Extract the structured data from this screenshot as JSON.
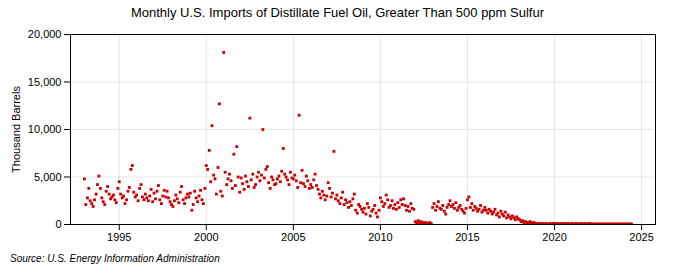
{
  "chart_data": {
    "type": "scatter",
    "title": "Monthly U.S. Imports of Distillate Fuel Oil, Greater Than 500 ppm Sulfur",
    "ylabel": "Thousand Barrels",
    "source": "Source: U.S. Energy Information Administration",
    "color": "#CC0000",
    "marker": "square",
    "grid": true,
    "xlim": [
      1992.2,
      2025.8
    ],
    "xticks": [
      1995,
      2000,
      2005,
      2010,
      2015,
      2020,
      2025
    ],
    "ylim": [
      0,
      20000
    ],
    "yticks": [
      0,
      {
        "value": 5000,
        "label": "5,000"
      },
      {
        "value": 10000,
        "label": "10,000"
      },
      {
        "value": 15000,
        "label": "15,000"
      },
      {
        "value": 20000,
        "label": "20,000"
      }
    ],
    "x": [
      1993,
      1993.08,
      1993.17,
      1993.25,
      1993.33,
      1993.42,
      1993.5,
      1993.58,
      1993.67,
      1993.75,
      1993.83,
      1993.92,
      1994,
      1994.08,
      1994.17,
      1994.25,
      1994.33,
      1994.42,
      1994.5,
      1994.58,
      1994.67,
      1994.75,
      1994.83,
      1994.92,
      1995,
      1995.08,
      1995.17,
      1995.25,
      1995.33,
      1995.42,
      1995.5,
      1995.58,
      1995.67,
      1995.75,
      1995.83,
      1995.92,
      1996,
      1996.08,
      1996.17,
      1996.25,
      1996.33,
      1996.42,
      1996.5,
      1996.58,
      1996.67,
      1996.75,
      1996.83,
      1996.92,
      1997,
      1997.08,
      1997.17,
      1997.25,
      1997.33,
      1997.42,
      1997.5,
      1997.58,
      1997.67,
      1997.75,
      1997.83,
      1997.92,
      1998,
      1998.08,
      1998.17,
      1998.25,
      1998.33,
      1998.42,
      1998.5,
      1998.58,
      1998.67,
      1998.75,
      1998.83,
      1998.92,
      1999,
      1999.08,
      1999.17,
      1999.25,
      1999.33,
      1999.42,
      1999.5,
      1999.58,
      1999.67,
      1999.75,
      1999.83,
      1999.92,
      2000,
      2000.08,
      2000.17,
      2000.25,
      2000.33,
      2000.42,
      2000.5,
      2000.58,
      2000.67,
      2000.75,
      2000.83,
      2000.92,
      2001,
      2001.08,
      2001.17,
      2001.25,
      2001.33,
      2001.42,
      2001.5,
      2001.58,
      2001.67,
      2001.75,
      2001.83,
      2001.92,
      2002,
      2002.08,
      2002.17,
      2002.25,
      2002.33,
      2002.42,
      2002.5,
      2002.58,
      2002.67,
      2002.75,
      2002.83,
      2002.92,
      2003,
      2003.08,
      2003.17,
      2003.25,
      2003.33,
      2003.42,
      2003.5,
      2003.58,
      2003.67,
      2003.75,
      2003.83,
      2003.92,
      2004,
      2004.08,
      2004.17,
      2004.25,
      2004.33,
      2004.42,
      2004.5,
      2004.58,
      2004.67,
      2004.75,
      2004.83,
      2004.92,
      2005,
      2005.08,
      2005.17,
      2005.25,
      2005.33,
      2005.42,
      2005.5,
      2005.58,
      2005.67,
      2005.75,
      2005.83,
      2005.92,
      2006,
      2006.08,
      2006.17,
      2006.25,
      2006.33,
      2006.42,
      2006.5,
      2006.58,
      2006.67,
      2006.75,
      2006.83,
      2006.92,
      2007,
      2007.08,
      2007.17,
      2007.25,
      2007.33,
      2007.42,
      2007.5,
      2007.58,
      2007.67,
      2007.75,
      2007.83,
      2007.92,
      2008,
      2008.08,
      2008.17,
      2008.25,
      2008.33,
      2008.42,
      2008.5,
      2008.58,
      2008.67,
      2008.75,
      2008.83,
      2008.92,
      2009,
      2009.08,
      2009.17,
      2009.25,
      2009.33,
      2009.42,
      2009.5,
      2009.58,
      2009.67,
      2009.75,
      2009.83,
      2009.92,
      2010,
      2010.08,
      2010.17,
      2010.25,
      2010.33,
      2010.42,
      2010.5,
      2010.58,
      2010.67,
      2010.75,
      2010.83,
      2010.92,
      2011,
      2011.08,
      2011.17,
      2011.25,
      2011.33,
      2011.42,
      2011.5,
      2011.58,
      2011.67,
      2011.75,
      2011.83,
      2011.92,
      2012,
      2012.08,
      2012.17,
      2012.25,
      2012.33,
      2012.42,
      2012.5,
      2012.58,
      2012.67,
      2012.75,
      2012.83,
      2012.92,
      2013,
      2013.08,
      2013.17,
      2013.25,
      2013.33,
      2013.42,
      2013.5,
      2013.58,
      2013.67,
      2013.75,
      2013.83,
      2013.92,
      2014,
      2014.08,
      2014.17,
      2014.25,
      2014.33,
      2014.42,
      2014.5,
      2014.58,
      2014.67,
      2014.75,
      2014.83,
      2014.92,
      2015,
      2015.08,
      2015.17,
      2015.25,
      2015.33,
      2015.42,
      2015.5,
      2015.58,
      2015.67,
      2015.75,
      2015.83,
      2015.92,
      2016,
      2016.08,
      2016.17,
      2016.25,
      2016.33,
      2016.42,
      2016.5,
      2016.58,
      2016.67,
      2016.75,
      2016.83,
      2016.92,
      2017,
      2017.08,
      2017.17,
      2017.25,
      2017.33,
      2017.42,
      2017.5,
      2017.58,
      2017.67,
      2017.75,
      2017.83,
      2017.92,
      2018,
      2018.08,
      2018.17,
      2018.25,
      2018.33,
      2018.42,
      2018.5,
      2018.58,
      2018.67,
      2018.75,
      2018.83,
      2018.92,
      2019,
      2019.08,
      2019.17,
      2019.25,
      2019.33,
      2019.42,
      2019.5,
      2019.58,
      2019.67,
      2019.75,
      2019.83,
      2019.92,
      2020,
      2020.08,
      2020.17,
      2020.25,
      2020.33,
      2020.42,
      2020.5,
      2020.58,
      2020.67,
      2020.75,
      2020.83,
      2020.92,
      2021,
      2021.08,
      2021.17,
      2021.25,
      2021.33,
      2021.42,
      2021.5,
      2021.58,
      2021.67,
      2021.75,
      2021.83,
      2021.92,
      2022,
      2022.08,
      2022.17,
      2022.25,
      2022.33,
      2022.42,
      2022.5,
      2022.58,
      2022.67,
      2022.75,
      2022.83,
      2022.92,
      2023,
      2023.08,
      2023.17,
      2023.25,
      2023.33,
      2023.42,
      2023.5,
      2023.58,
      2023.67,
      2023.75,
      2023.83,
      2023.92,
      2024,
      2024.08,
      2024.17,
      2024.25,
      2024.33,
      2024.42
    ],
    "values": [
      4800,
      2100,
      2800,
      3800,
      2500,
      2200,
      1900,
      2600,
      3200,
      4200,
      5100,
      3800,
      2800,
      2400,
      2100,
      3500,
      4000,
      3200,
      2700,
      2900,
      3100,
      2600,
      2300,
      3800,
      4500,
      3200,
      2800,
      3000,
      2200,
      2600,
      3500,
      3900,
      5800,
      6200,
      3400,
      2900,
      3100,
      2500,
      3800,
      4200,
      2900,
      2600,
      3200,
      2800,
      2500,
      3000,
      3700,
      2400,
      3300,
      2700,
      3500,
      4100,
      2600,
      2200,
      3000,
      3600,
      2900,
      3500,
      2800,
      2400,
      2100,
      1900,
      2500,
      3100,
      2700,
      2300,
      3400,
      4000,
      2600,
      2200,
      2800,
      3200,
      2900,
      3300,
      1500,
      2100,
      3500,
      2800,
      2400,
      3000,
      3600,
      2600,
      2200,
      3800,
      6200,
      5800,
      7800,
      4500,
      10400,
      5200,
      4800,
      3200,
      6000,
      12700,
      3500,
      3000,
      18100,
      5500,
      4200,
      4800,
      5300,
      4600,
      3800,
      7400,
      4100,
      8200,
      5000,
      3400,
      4900,
      4300,
      3700,
      5100,
      4500,
      4000,
      11200,
      4700,
      5300,
      3900,
      4200,
      5000,
      5500,
      4600,
      5200,
      10000,
      4900,
      5800,
      6100,
      4400,
      3800,
      5000,
      4700,
      4200,
      4300,
      4800,
      5100,
      4500,
      5600,
      8000,
      5300,
      5000,
      4700,
      4200,
      5500,
      4900,
      4800,
      5200,
      4600,
      3900,
      11500,
      4400,
      5700,
      4300,
      4000,
      5100,
      4600,
      3800,
      4200,
      3900,
      4700,
      5300,
      4100,
      3700,
      3200,
      2800,
      3500,
      3100,
      2600,
      3000,
      4400,
      3800,
      2900,
      3300,
      7700,
      2700,
      3100,
      2500,
      2200,
      2800,
      3400,
      2100,
      2600,
      2300,
      1800,
      2400,
      2000,
      2700,
      3200,
      1500,
      1200,
      2100,
      1900,
      1600,
      1300,
      1700,
      1100,
      2200,
      1800,
      900,
      1400,
      1600,
      2000,
      1200,
      800,
      1500,
      2800,
      2400,
      1900,
      2200,
      3100,
      2600,
      1800,
      2000,
      2500,
      1700,
      2100,
      1600,
      2300,
      1800,
      2600,
      2100,
      2700,
      2000,
      1500,
      1900,
      1400,
      2200,
      1700,
      1600,
      300,
      200,
      400,
      150,
      300,
      200,
      100,
      200,
      150,
      100,
      200,
      100,
      1800,
      2200,
      1500,
      1900,
      2400,
      1700,
      1600,
      2000,
      1400,
      1100,
      1800,
      2100,
      2500,
      1900,
      2100,
      1700,
      2300,
      1500,
      1800,
      2000,
      1600,
      1400,
      1200,
      1700,
      2600,
      2900,
      1800,
      2200,
      1500,
      1900,
      1700,
      1400,
      1600,
      2000,
      1300,
      1500,
      1800,
      1500,
      1200,
      1600,
      1400,
      1100,
      1300,
      1600,
      1000,
      1200,
      800,
      1400,
      1100,
      900,
      1300,
      700,
      1000,
      800,
      600,
      900,
      700,
      500,
      800,
      600,
      500,
      300,
      400,
      200,
      300,
      200,
      100,
      300,
      200,
      100,
      200,
      100,
      100,
      50,
      100,
      50,
      100,
      50,
      100,
      50,
      50,
      100,
      50,
      100,
      100,
      50,
      100,
      50,
      50,
      100,
      50,
      100,
      50,
      100,
      50,
      50,
      100,
      50,
      50,
      100,
      50,
      50,
      100,
      50,
      50,
      100,
      50,
      50,
      100,
      50,
      50,
      50,
      50,
      50,
      50,
      50,
      50,
      50,
      50,
      50,
      50,
      50,
      50,
      50,
      50,
      50,
      50,
      50,
      50,
      50,
      50,
      50,
      50,
      50,
      50,
      50,
      50,
      50
    ]
  }
}
